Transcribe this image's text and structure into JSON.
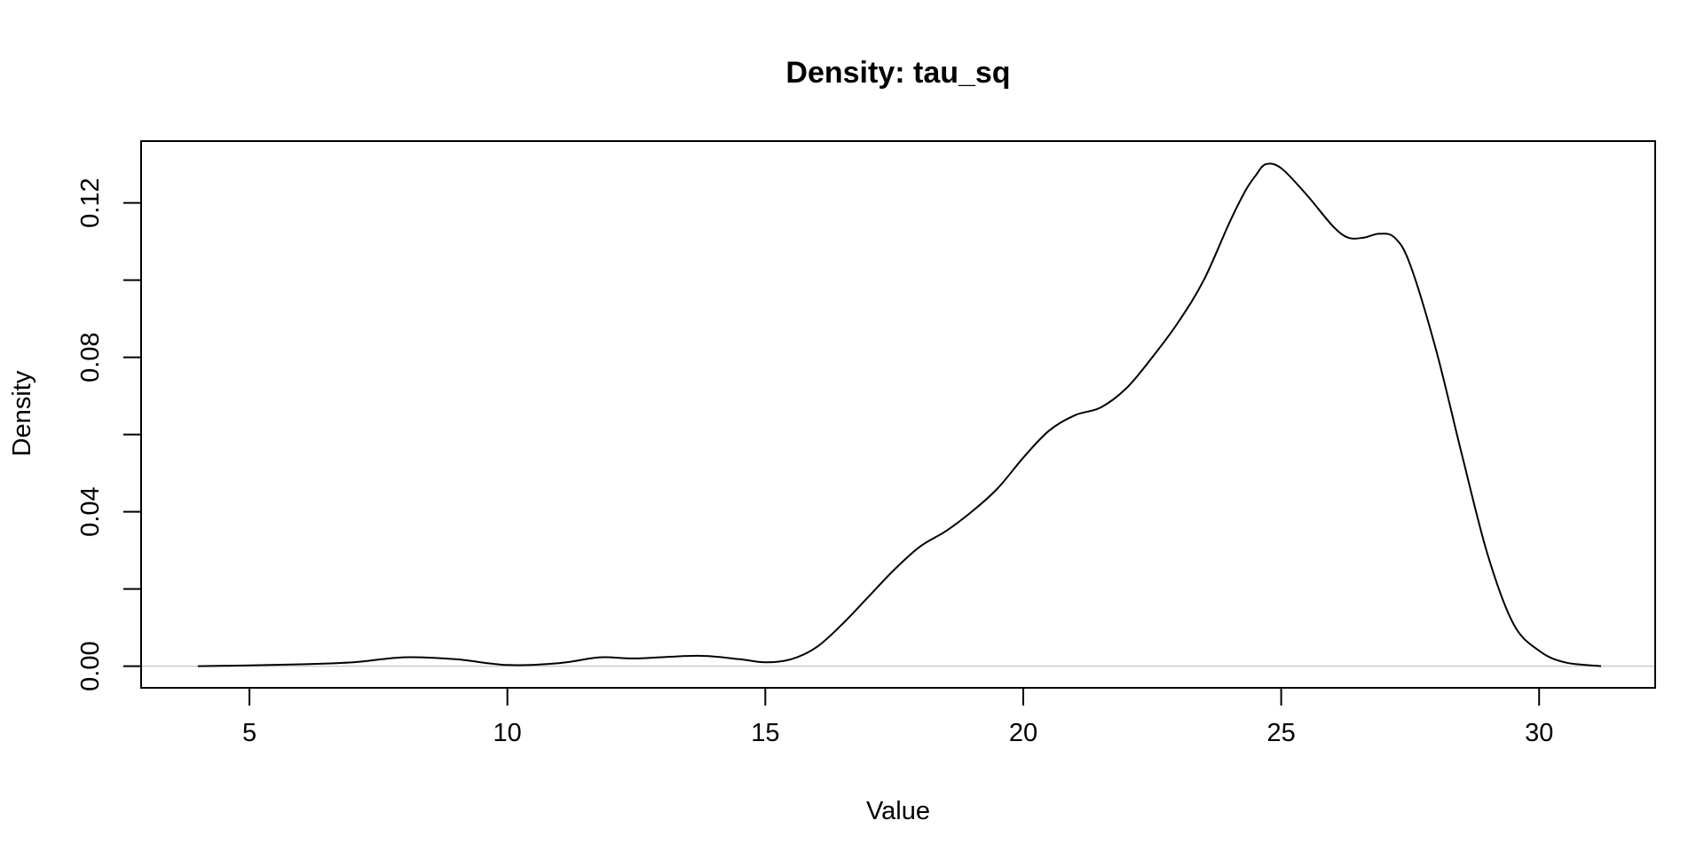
{
  "chart_data": {
    "type": "line",
    "title": "Density: tau_sq",
    "xlabel": "Value",
    "ylabel": "Density",
    "xlim": [
      2.9,
      32.25
    ],
    "ylim": [
      -0.0056,
      0.136
    ],
    "x_ticks": [
      5,
      10,
      15,
      20,
      25,
      30
    ],
    "x_tick_labels": [
      "5",
      "10",
      "15",
      "20",
      "25",
      "30"
    ],
    "y_ticks": [
      0.0,
      0.02,
      0.04,
      0.06,
      0.08,
      0.1,
      0.12
    ],
    "y_tick_labels": [
      "0.00",
      "",
      "0.04",
      "",
      "0.08",
      "",
      "0.12"
    ],
    "zero_line": true,
    "series": [
      {
        "x": [
          4.0,
          5.0,
          6.0,
          7.0,
          8.0,
          9.0,
          10.0,
          11.0,
          11.8,
          12.5,
          13.7,
          14.5,
          15.0,
          15.5,
          16.0,
          16.5,
          17.0,
          17.5,
          18.0,
          18.5,
          19.0,
          19.5,
          20.0,
          20.5,
          21.0,
          21.5,
          22.0,
          22.5,
          23.0,
          23.5,
          24.0,
          24.3,
          24.5,
          24.7,
          25.0,
          25.5,
          26.0,
          26.3,
          26.6,
          26.9,
          27.2,
          27.5,
          28.0,
          28.5,
          29.0,
          29.5,
          30.0,
          30.5,
          31.2
        ],
        "y": [
          0.0,
          0.0002,
          0.0005,
          0.001,
          0.0023,
          0.0018,
          0.0003,
          0.0008,
          0.0023,
          0.002,
          0.0027,
          0.0018,
          0.001,
          0.0018,
          0.005,
          0.011,
          0.018,
          0.025,
          0.031,
          0.035,
          0.04,
          0.046,
          0.054,
          0.061,
          0.065,
          0.067,
          0.072,
          0.08,
          0.089,
          0.1,
          0.115,
          0.123,
          0.127,
          0.13,
          0.129,
          0.122,
          0.114,
          0.111,
          0.111,
          0.112,
          0.111,
          0.104,
          0.082,
          0.055,
          0.029,
          0.011,
          0.004,
          0.001,
          0.0
        ]
      }
    ]
  }
}
